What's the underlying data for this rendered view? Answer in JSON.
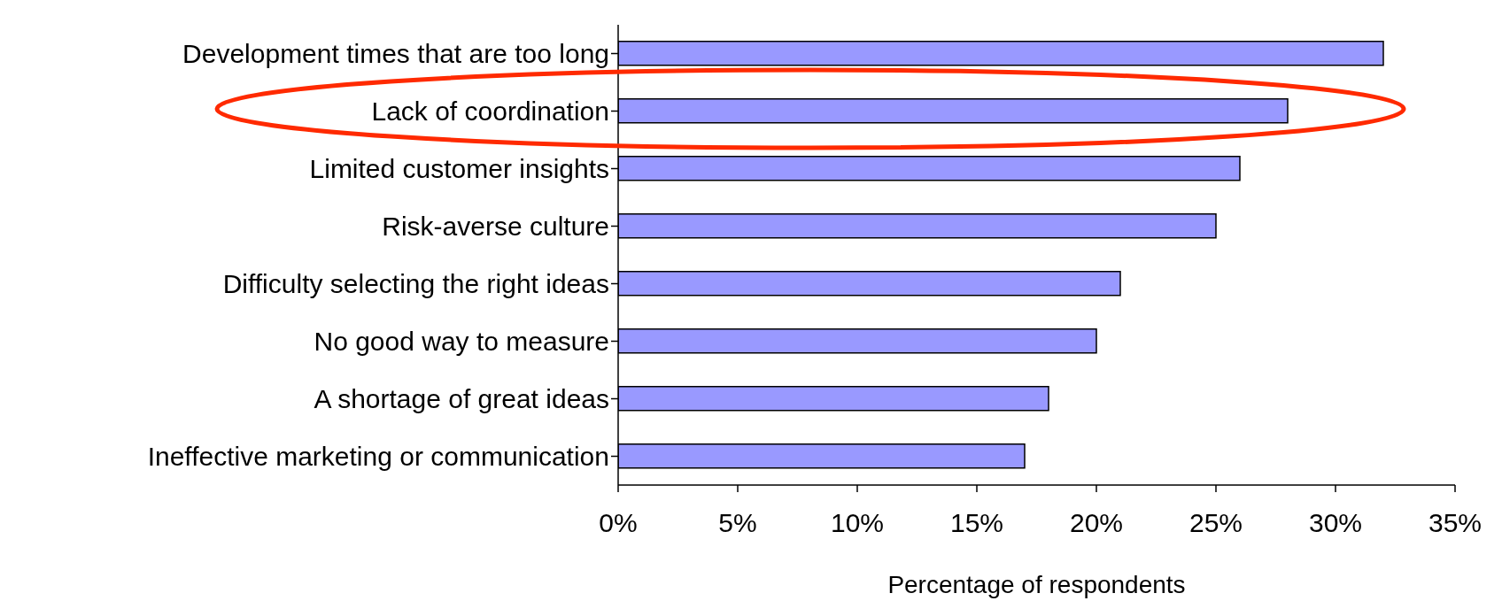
{
  "chart_data": {
    "type": "bar",
    "orientation": "horizontal",
    "xlabel": "Percentage of respondents",
    "categories": [
      "Development times that are too long",
      "Lack of coordination",
      "Limited customer insights",
      "Risk-averse culture",
      "Difficulty selecting the right ideas",
      "No good way to measure ",
      "A shortage of great ideas",
      "Ineffective marketing or communication"
    ],
    "values": [
      32,
      28,
      26,
      25,
      21,
      20,
      18,
      17
    ],
    "color": "#9999ff",
    "xlim": [
      0,
      35
    ],
    "xticks": [
      {
        "value": 0,
        "label": "0%"
      },
      {
        "value": 5,
        "label": "5%"
      },
      {
        "value": 10,
        "label": "10%"
      },
      {
        "value": 15,
        "label": "15%"
      },
      {
        "value": 20,
        "label": "20%"
      },
      {
        "value": 25,
        "label": "25%"
      },
      {
        "value": 30,
        "label": "30%"
      },
      {
        "value": 35,
        "label": "35%"
      }
    ],
    "grid": false,
    "legend": false
  }
}
